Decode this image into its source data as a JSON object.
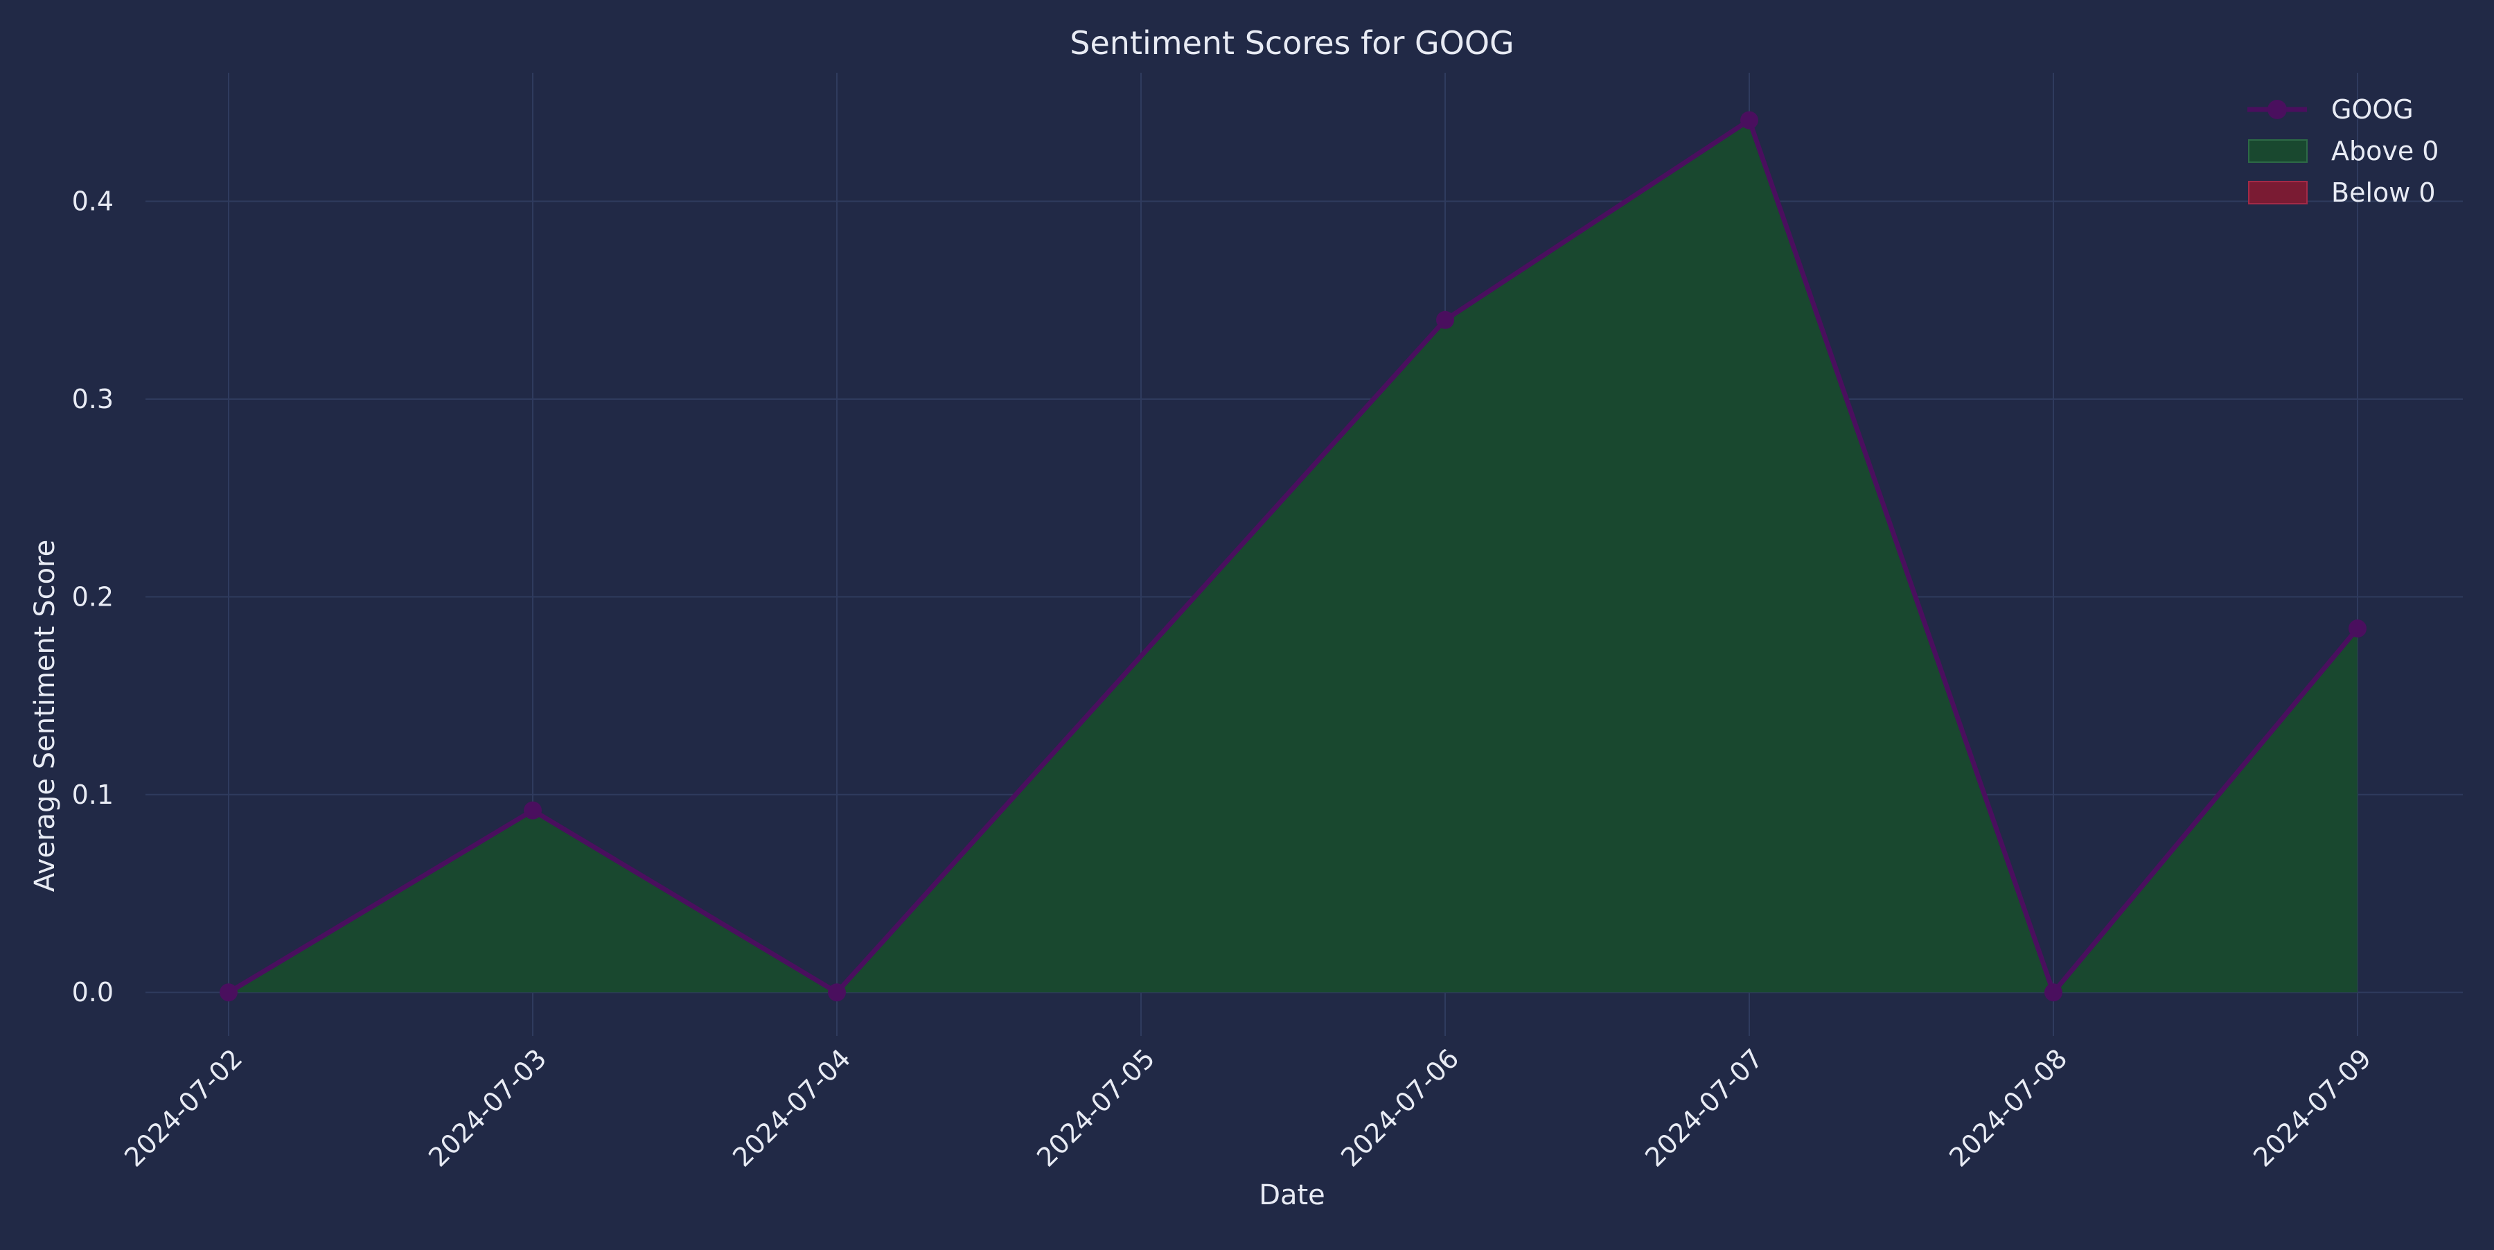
{
  "chart_data": {
    "type": "area",
    "title": "Sentiment Scores for GOOG",
    "xlabel": "Date",
    "ylabel": "Average Sentiment Score",
    "x": [
      "2024-07-02",
      "2024-07-03",
      "2024-07-04",
      "2024-07-05",
      "2024-07-06",
      "2024-07-07",
      "2024-07-08",
      "2024-07-09"
    ],
    "series": [
      {
        "name": "GOOG",
        "points": [
          {
            "x": "2024-07-02",
            "y": 0.0
          },
          {
            "x": "2024-07-03",
            "y": 0.092
          },
          {
            "x": "2024-07-04",
            "y": 0.0
          },
          {
            "x": "2024-07-06",
            "y": 0.34
          },
          {
            "x": "2024-07-07",
            "y": 0.441
          },
          {
            "x": "2024-07-08",
            "y": 0.0
          },
          {
            "x": "2024-07-09",
            "y": 0.184
          }
        ]
      }
    ],
    "ylim": [
      -0.022,
      0.465
    ],
    "yticks": [
      0.0,
      0.1,
      0.2,
      0.3,
      0.4
    ],
    "ytick_labels": [
      "0.0",
      "0.1",
      "0.2",
      "0.3",
      "0.4"
    ],
    "grid": true,
    "legend": {
      "placement": "top-right",
      "entries": [
        "GOOG",
        "Above 0",
        "Below 0"
      ]
    },
    "colors": {
      "background": "#212946",
      "line": "#4a0f5e",
      "above_fill": "#19482f",
      "below_fill": "#7a1b33",
      "grid": "#2f3b5e",
      "text": "#e8ebf4"
    }
  }
}
